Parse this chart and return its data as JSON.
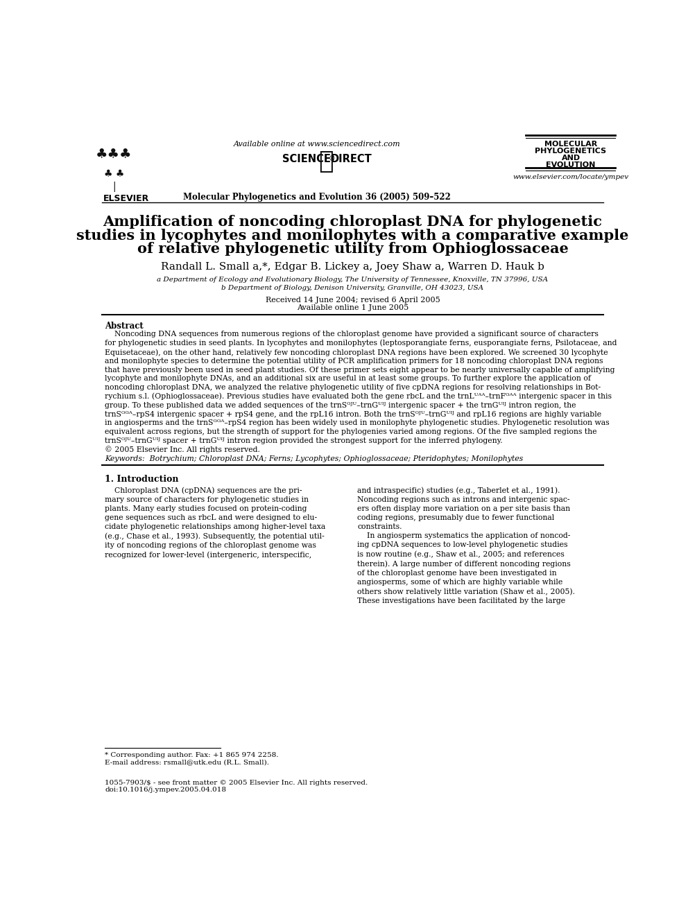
{
  "bg_color": "#ffffff",
  "available_online": "Available online at www.sciencedirect.com",
  "journal_name_bold": "Molecular Phylogenetics and Evolution 36 (2005) 509–522",
  "journal_title_lines": [
    "MOLECULAR",
    "PHYLOGENETICS",
    "AND",
    "EVOLUTION"
  ],
  "elsevier_text": "ELSEVIER",
  "website": "www.elsevier.com/locate/ympev",
  "title_line1": "Amplification of noncoding chloroplast DNA for phylogenetic",
  "title_line2": "studies in lycophytes and monilophytes with a comparative example",
  "title_line3": "of relative phylogenetic utility from Ophioglossaceae",
  "authors": "Randall L. Small a,*, Edgar B. Lickey a, Joey Shaw a, Warren D. Hauk b",
  "affil_a": "a Department of Ecology and Evolutionary Biology, The University of Tennessee, Knoxville, TN 37996, USA",
  "affil_b": "b Department of Biology, Denison University, Granville, OH 43023, USA",
  "received": "Received 14 June 2004; revised 6 April 2005",
  "available": "Available online 1 June 2005",
  "abstract_heading": "Abstract",
  "keywords_line": "Keywords:  Botrychium; Chloroplast DNA; Ferns; Lycophytes; Ophioglossaceae; Pteridophytes; Monilophytes",
  "section1_heading": "1. Introduction",
  "footnote_star": "* Corresponding author. Fax: +1 865 974 2258.",
  "footnote_email": "E-mail address: rsmall@utk.edu (R.L. Small).",
  "footer_issn": "1055-7903/$ - see front matter © 2005 Elsevier Inc. All rights reserved.",
  "footer_doi": "doi:10.1016/j.ympev.2005.04.018"
}
